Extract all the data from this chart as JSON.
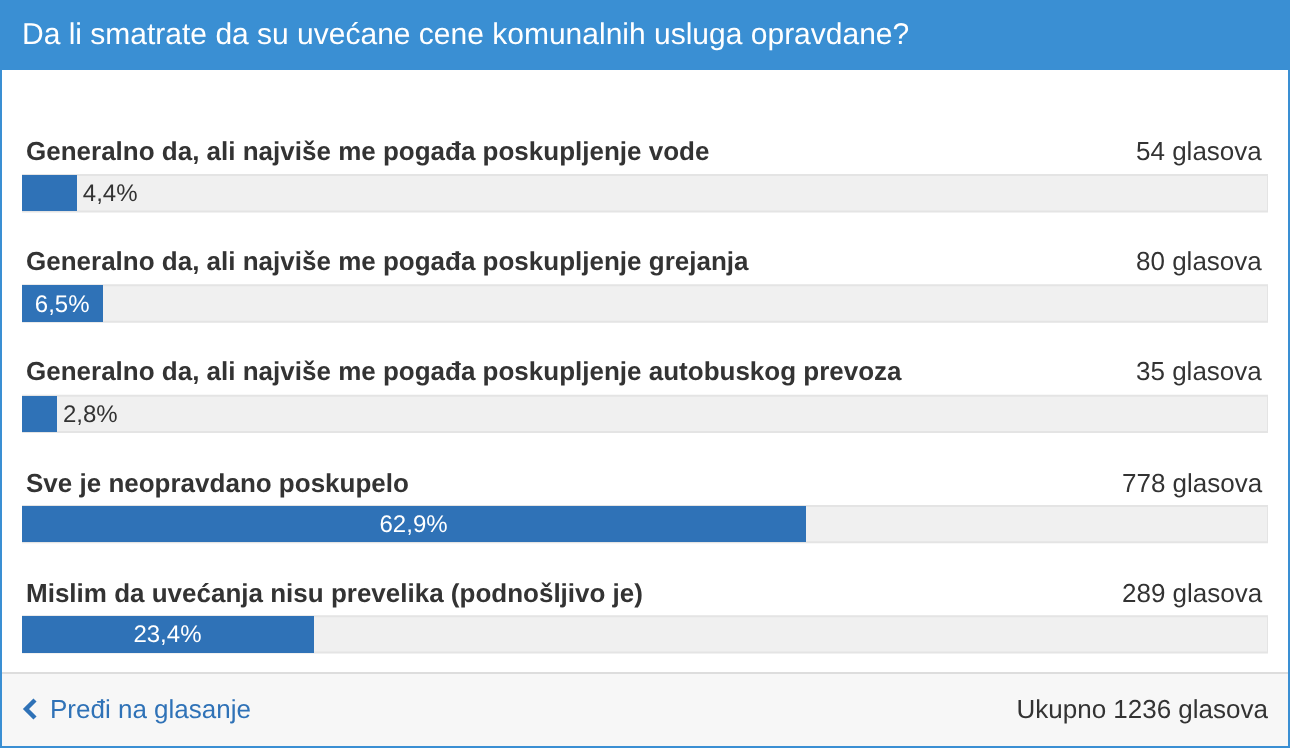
{
  "chart_data": {
    "type": "bar",
    "orientation": "horizontal",
    "title": "Da li smatrate da su uvećane cene komunalnih usluga opravdane?",
    "categories": [
      "Generalno da, ali najviše me pogađa poskupljenje vode",
      "Generalno da, ali najviše me pogađa poskupljenje grejanja",
      "Generalno da, ali najviše me pogađa poskupljenje autobuskog prevoza",
      "Sve je neopravdano poskupelo",
      "Mislim da uvećanja nisu prevelika (podnošljivo je)"
    ],
    "values": [
      4.4,
      6.5,
      2.8,
      62.9,
      23.4
    ],
    "value_labels": [
      "4,4%",
      "6,5%",
      "2,8%",
      "62,9%",
      "23,4%"
    ],
    "color": "#2f72b7",
    "xlim": [
      0,
      100
    ],
    "grid": false,
    "legend": false,
    "annotations": [
      "54 glasova",
      "80 glasova",
      "35 glasova",
      "778 glasova",
      "289 glasova",
      "Pređi na glasanje",
      "Ukupno 1236 glasova"
    ]
  }
}
